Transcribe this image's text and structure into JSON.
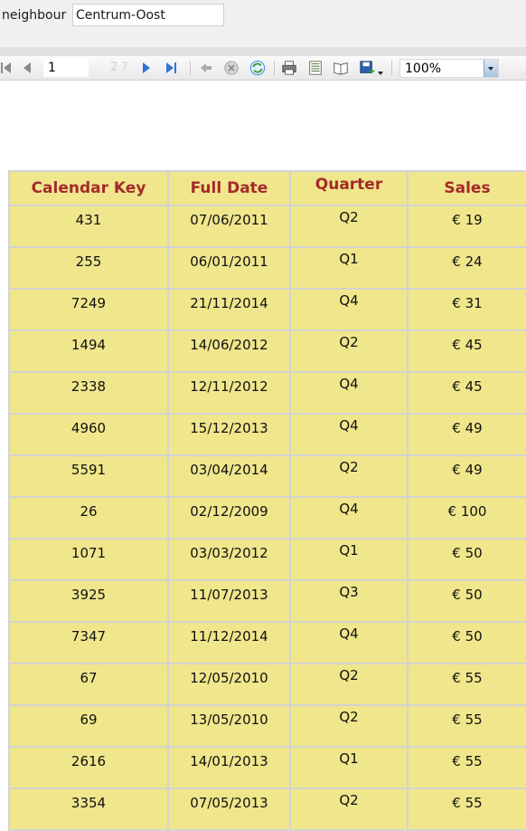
{
  "parameters": {
    "label": "neighbour",
    "value": "Centrum-Oost"
  },
  "toolbar": {
    "current_page": "1",
    "page_total": "2 ?",
    "zoom": "100%",
    "icons": [
      "first-page-icon",
      "prev-page-icon",
      "next-page-icon",
      "last-page-icon",
      "back-icon",
      "stop-icon",
      "refresh-icon",
      "print-icon",
      "page-setup-icon",
      "print-layout-icon",
      "export-icon"
    ]
  },
  "report": {
    "colors": {
      "header_text": "#A52A2A",
      "cell_bg": "#F0E68C",
      "border": "#D3D3D3"
    },
    "columns": [
      "Calendar Key",
      "Full Date",
      "Quarter",
      "Sales"
    ],
    "rows": [
      [
        "431",
        "07/06/2011",
        "Q2",
        "€ 19"
      ],
      [
        "255",
        "06/01/2011",
        "Q1",
        "€ 24"
      ],
      [
        "7249",
        "21/11/2014",
        "Q4",
        "€ 31"
      ],
      [
        "1494",
        "14/06/2012",
        "Q2",
        "€ 45"
      ],
      [
        "2338",
        "12/11/2012",
        "Q4",
        "€ 45"
      ],
      [
        "4960",
        "15/12/2013",
        "Q4",
        "€ 49"
      ],
      [
        "5591",
        "03/04/2014",
        "Q2",
        "€ 49"
      ],
      [
        "26",
        "02/12/2009",
        "Q4",
        "€ 100"
      ],
      [
        "1071",
        "03/03/2012",
        "Q1",
        "€ 50"
      ],
      [
        "3925",
        "11/07/2013",
        "Q3",
        "€ 50"
      ],
      [
        "7347",
        "11/12/2014",
        "Q4",
        "€ 50"
      ],
      [
        "67",
        "12/05/2010",
        "Q2",
        "€ 55"
      ],
      [
        "69",
        "13/05/2010",
        "Q2",
        "€ 55"
      ],
      [
        "2616",
        "14/01/2013",
        "Q1",
        "€ 55"
      ],
      [
        "3354",
        "07/05/2013",
        "Q2",
        "€ 55"
      ]
    ]
  }
}
